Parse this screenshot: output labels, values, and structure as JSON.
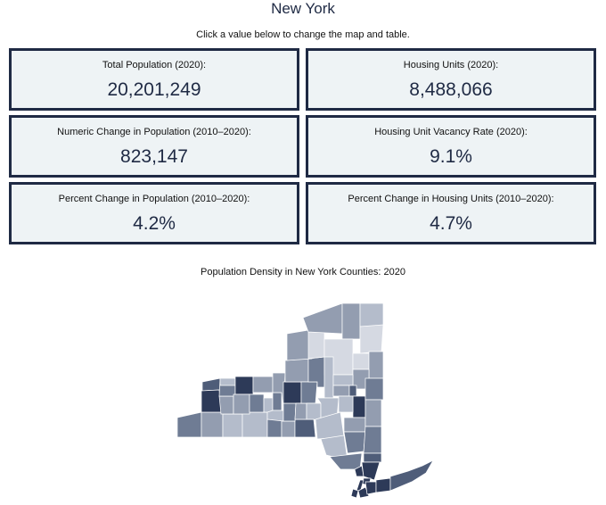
{
  "page": {
    "title": "New York",
    "instruction": "Click a value below to change the map and table."
  },
  "cards": [
    {
      "label": "Total Population (2020):",
      "value": "20,201,249"
    },
    {
      "label": "Housing Units (2020):",
      "value": "8,488,066"
    },
    {
      "label": "Numeric Change in Population (2010–2020):",
      "value": "823,147"
    },
    {
      "label": "Housing Unit Vacancy Rate (2020):",
      "value": "9.1%"
    },
    {
      "label": "Percent Change in Population (2010–2020):",
      "value": "4.2%"
    },
    {
      "label": "Percent Change in Housing Units (2010–2020):",
      "value": "4.7%"
    }
  ],
  "map": {
    "title": "Population Density in New York Counties: 2020",
    "colors": {
      "lightest": "#d5d9e2",
      "light": "#b4bccb",
      "medium": "#939db0",
      "dark": "#6f7c94",
      "darker": "#4f5d79",
      "darkest": "#2d3a58",
      "border": "#1f2a44"
    }
  }
}
